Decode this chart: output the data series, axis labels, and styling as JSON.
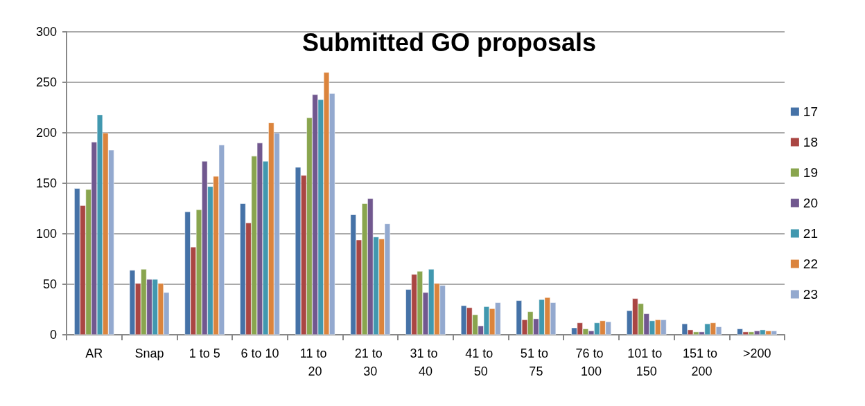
{
  "chart_data": {
    "type": "bar",
    "title": "Submitted GO proposals",
    "categories": [
      "AR",
      "Snap",
      "1 to 5",
      "6 to 10",
      "11 to 20",
      "21 to 30",
      "31 to 40",
      "41 to 50",
      "51 to 75",
      "76 to 100",
      "101 to 150",
      "151 to 200",
      ">200"
    ],
    "series": [
      {
        "name": "17",
        "color": "#4572a7",
        "values": [
          145,
          64,
          122,
          130,
          166,
          119,
          45,
          29,
          34,
          7,
          24,
          11,
          6
        ]
      },
      {
        "name": "18",
        "color": "#aa4643",
        "values": [
          128,
          51,
          87,
          111,
          158,
          94,
          60,
          27,
          15,
          12,
          36,
          5,
          3
        ]
      },
      {
        "name": "19",
        "color": "#89a54e",
        "values": [
          144,
          65,
          124,
          177,
          215,
          130,
          63,
          20,
          23,
          6,
          31,
          3,
          3
        ]
      },
      {
        "name": "20",
        "color": "#71588f",
        "values": [
          191,
          55,
          172,
          190,
          238,
          135,
          42,
          9,
          16,
          4,
          21,
          3,
          4
        ]
      },
      {
        "name": "21",
        "color": "#4198af",
        "values": [
          218,
          55,
          147,
          172,
          233,
          97,
          65,
          28,
          35,
          12,
          14,
          11,
          5
        ]
      },
      {
        "name": "22",
        "color": "#db843d",
        "values": [
          200,
          51,
          157,
          210,
          260,
          95,
          51,
          26,
          37,
          14,
          15,
          12,
          4
        ]
      },
      {
        "name": "23",
        "color": "#93a9cf",
        "values": [
          183,
          42,
          188,
          200,
          239,
          110,
          49,
          32,
          32,
          13,
          15,
          8,
          4
        ]
      }
    ],
    "ylim": [
      0,
      300
    ],
    "yticks": [
      0,
      50,
      100,
      150,
      200,
      250,
      300
    ],
    "grid": "y",
    "legend": "right"
  }
}
